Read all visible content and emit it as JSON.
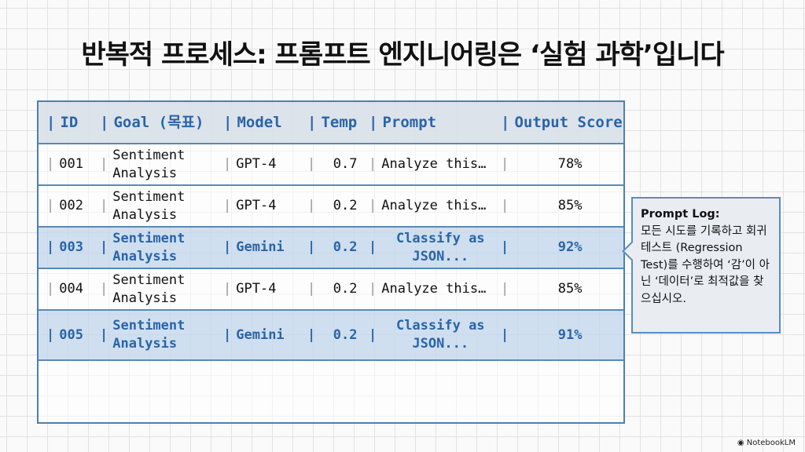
{
  "title": "반복적 프로세스: 프롬프트 엔지니어링은 ‘실험 과학’입니다",
  "table": {
    "headers": [
      "ID",
      "Goal (목표)",
      "Model",
      "Temp",
      "Prompt",
      "Output Score"
    ],
    "rows": [
      {
        "id": "001",
        "goal": "Sentiment Analysis",
        "model": "GPT-4",
        "temp": "0.7",
        "prompt": "Analyze this…",
        "score": "78%",
        "highlighted": false
      },
      {
        "id": "002",
        "goal": "Sentiment Analysis",
        "model": "GPT-4",
        "temp": "0.2",
        "prompt": "Analyze this…",
        "score": "85%",
        "highlighted": false
      },
      {
        "id": "003",
        "goal": "Sentiment Analysis",
        "model": "Gemini",
        "temp": "0.2",
        "prompt": "Classify as JSON...",
        "score": "92%",
        "highlighted": true
      },
      {
        "id": "004",
        "goal": "Sentiment Analysis",
        "model": "GPT-4",
        "temp": "0.2",
        "prompt": "Analyze this…",
        "score": "85%",
        "highlighted": false
      },
      {
        "id": "005",
        "goal": "Sentiment Analysis",
        "model": "Gemini",
        "temp": "0.2",
        "prompt": "Classify as JSON...",
        "score": "91%",
        "highlighted": true
      }
    ]
  },
  "callout": {
    "heading": "Prompt Log:",
    "body": "모든 시도를 기록하고 회귀 테스트 (Regression Test)를 수행하여 ‘감’이 아닌 ‘데이터’로 최적값을 찾으십시오."
  },
  "brand": "NotebookLM",
  "colors": {
    "accent": "#2a64a8",
    "highlight": "#b9cfe8"
  }
}
